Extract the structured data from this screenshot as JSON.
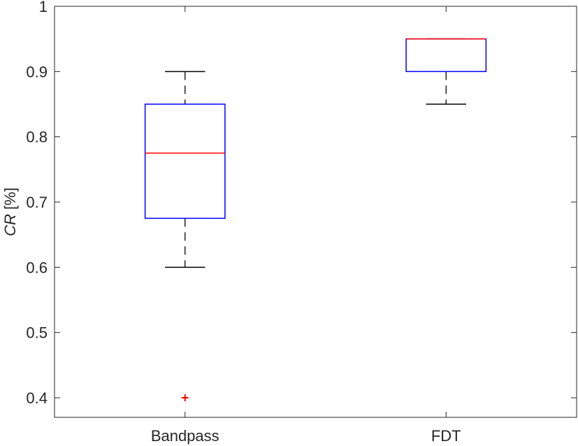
{
  "chart_data": {
    "type": "boxplot",
    "ylabel_italic": "CR",
    "ylabel_unit": " [%]",
    "ylim": [
      0.37,
      1.0
    ],
    "yticks": [
      0.4,
      0.5,
      0.6,
      0.7,
      0.8,
      0.9,
      1
    ],
    "ytick_labels": [
      "0.4",
      "0.5",
      "0.6",
      "0.7",
      "0.8",
      "0.9",
      "1"
    ],
    "categories": [
      "Bandpass",
      "FDT"
    ],
    "boxes": [
      {
        "category": "Bandpass",
        "whisker_low": 0.6,
        "q1": 0.675,
        "median": 0.775,
        "q3": 0.85,
        "whisker_high": 0.9,
        "outliers": [
          0.4
        ]
      },
      {
        "category": "FDT",
        "whisker_low": 0.85,
        "q1": 0.9,
        "median": 0.95,
        "q3": 0.95,
        "whisker_high": 0.95,
        "outliers": []
      }
    ],
    "grid": false,
    "colors": {
      "box": "#0000ff",
      "median": "#ff0000",
      "whisker": "#000000",
      "outlier": "#ff0000",
      "axis": "#262626"
    }
  }
}
